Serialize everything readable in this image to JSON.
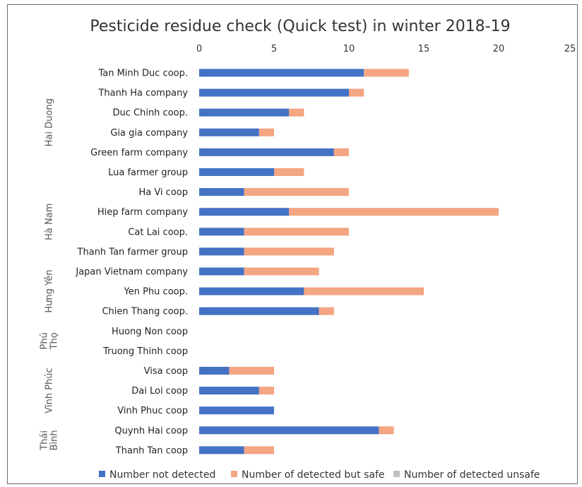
{
  "chart_data": {
    "type": "bar",
    "orientation": "horizontal",
    "stacked": true,
    "title": "Pesticide residue check (Quick test) in winter 2018-19",
    "xlim": [
      0,
      25
    ],
    "xticks": [
      "0",
      "5",
      "10",
      "15",
      "20",
      "25"
    ],
    "xaxis_position": "top",
    "categories": [
      "Tan Minh Duc coop.",
      "Thanh Ha company",
      "Duc Chinh coop.",
      "Gia gia company",
      "Green farm company",
      "Lua farmer group",
      "Ha Vi coop",
      "Hiep farm company",
      "Cat Lai coop.",
      "Thanh Tan farmer group",
      "Japan Vietnam company",
      "Yen Phu coop.",
      "Chien Thang coop.",
      "Huong Non coop",
      "Truong Thinh coop",
      "Visa coop",
      "Dai Loi coop",
      "Vinh Phuc coop",
      "Quynh Hai coop",
      "Thanh Tan coop"
    ],
    "groups": [
      {
        "label": "Hai Duong",
        "lines": [
          "Hai Duong"
        ],
        "from": 0,
        "to": 5
      },
      {
        "label": "Hà Nam",
        "lines": [
          "Hà Nam"
        ],
        "from": 6,
        "to": 9
      },
      {
        "label": "Hưng Yên",
        "lines": [
          "Hưng Yên"
        ],
        "from": 10,
        "to": 12
      },
      {
        "label": "Phú Thọ",
        "lines": [
          "Phú",
          "Thọ"
        ],
        "from": 13,
        "to": 14
      },
      {
        "label": "Vĩnh Phúc",
        "lines": [
          "Vĩnh Phúc"
        ],
        "from": 15,
        "to": 17
      },
      {
        "label": "Thái Bình",
        "lines": [
          "Thái",
          "Bình"
        ],
        "from": 18,
        "to": 19
      }
    ],
    "series": [
      {
        "name": "Number not detected",
        "color": "#4472c4",
        "values": [
          11,
          10,
          6,
          4,
          9,
          5,
          3,
          6,
          3,
          3,
          3,
          7,
          8,
          0,
          0,
          2,
          4,
          5,
          12,
          3
        ]
      },
      {
        "name": "Number of detected but safe",
        "color": "#f4a582",
        "values": [
          3,
          1,
          1,
          1,
          1,
          2,
          7,
          14,
          7,
          6,
          5,
          8,
          1,
          0,
          0,
          3,
          1,
          0,
          1,
          2
        ]
      },
      {
        "name": "Number of detected unsafe",
        "color": "#bfbfbf",
        "values": [
          0,
          0,
          0,
          0,
          0,
          0,
          0,
          0,
          0,
          0,
          0,
          0,
          0,
          0,
          0,
          0,
          0,
          0,
          0,
          0
        ]
      }
    ],
    "legend_position": "bottom",
    "grid": false
  }
}
